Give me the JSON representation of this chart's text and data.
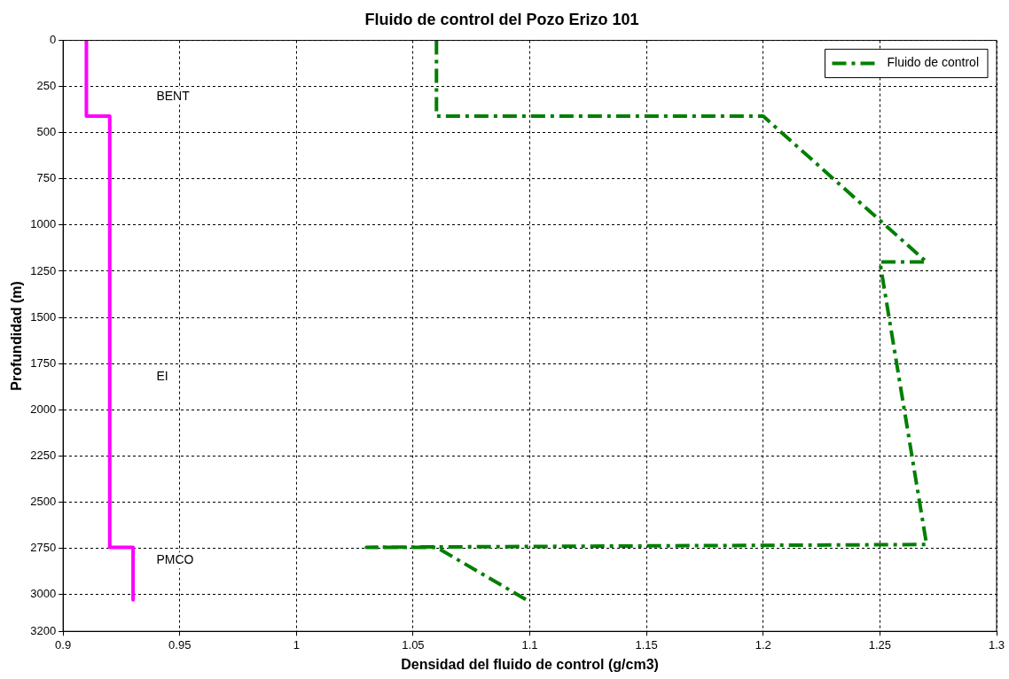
{
  "chart_data": {
    "type": "line",
    "title": "Fluido de control del Pozo Erizo 101",
    "xlabel": "Densidad del fluido de control (g/cm3)",
    "ylabel": "Profundidad (m)",
    "xlim": [
      0.9,
      1.3
    ],
    "xticks": [
      0.9,
      0.95,
      1,
      1.05,
      1.1,
      1.15,
      1.2,
      1.25,
      1.3
    ],
    "ylim": [
      3200,
      0
    ],
    "yticks": [
      0,
      250,
      500,
      750,
      1000,
      1250,
      1500,
      1750,
      2000,
      2250,
      2500,
      2750,
      3000,
      3200
    ],
    "grid": true,
    "legend": "top right",
    "marker": "none",
    "series": [
      {
        "color": "#ff00ff",
        "line_style": "solid",
        "x": [
          0.91,
          0.91,
          0.92,
          0.92,
          0.93,
          0.93
        ],
        "values": [
          0,
          410,
          410,
          2745,
          2745,
          3030
        ]
      },
      {
        "name": "Fluido de control",
        "color": "#007f00",
        "line_style": "dashed",
        "x": [
          1.06,
          1.06,
          1.2,
          1.27,
          1.25,
          1.27,
          1.03,
          1.06,
          1.1
        ],
        "values": [
          0,
          410,
          410,
          1200,
          1200,
          2730,
          2745,
          2745,
          3040
        ]
      }
    ],
    "annotations": [
      "BENT",
      "EI",
      "PMCO"
    ]
  }
}
